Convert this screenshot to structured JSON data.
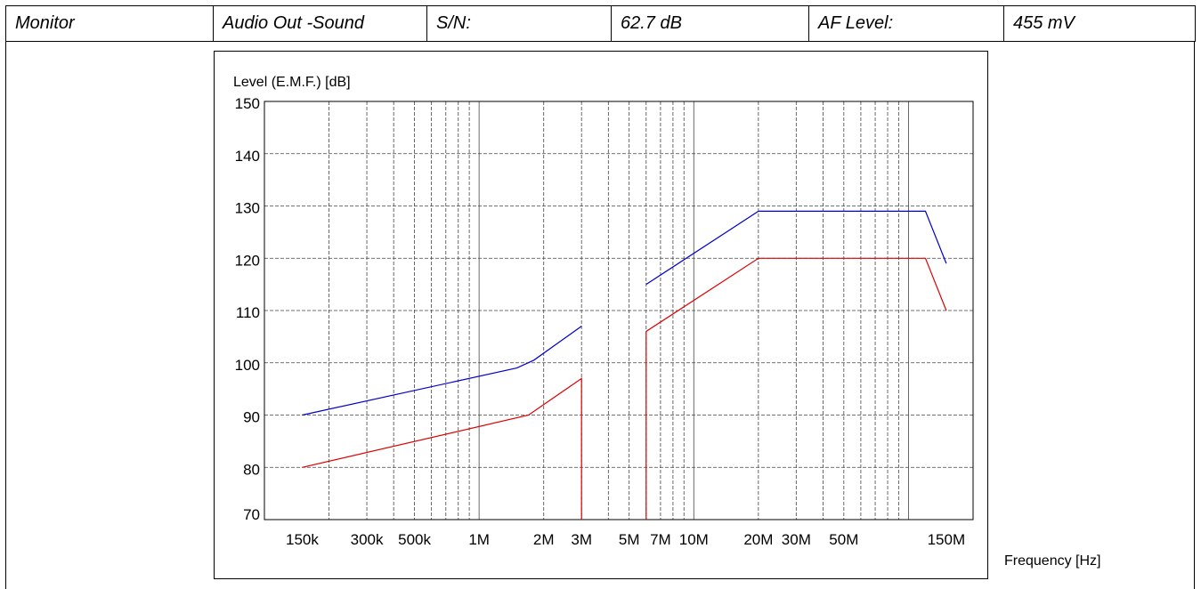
{
  "header": {
    "cells": [
      "Monitor",
      "Audio Out -Sound",
      "S/N:",
      "62.7 dB",
      "AF Level:",
      "455 mV"
    ]
  },
  "chart_data": {
    "type": "line",
    "title": "",
    "ylabel": "Level (E.M.F.) [dB]",
    "xlabel": "Frequency [Hz]",
    "x_scale": "log",
    "xlim": [
      100000,
      200000000
    ],
    "ylim": [
      70,
      150
    ],
    "yticks": [
      70,
      80,
      90,
      100,
      110,
      120,
      130,
      140,
      150
    ],
    "xticks": [
      {
        "value": 150000,
        "label": "150k"
      },
      {
        "value": 300000,
        "label": "300k"
      },
      {
        "value": 500000,
        "label": "500k"
      },
      {
        "value": 1000000,
        "label": "1M"
      },
      {
        "value": 2000000,
        "label": "2M"
      },
      {
        "value": 3000000,
        "label": "3M"
      },
      {
        "value": 5000000,
        "label": "5M"
      },
      {
        "value": 7000000,
        "label": "7M"
      },
      {
        "value": 10000000,
        "label": "10M"
      },
      {
        "value": 20000000,
        "label": "20M"
      },
      {
        "value": 30000000,
        "label": "30M"
      },
      {
        "value": 50000000,
        "label": "50M"
      },
      {
        "value": 150000000,
        "label": "150M"
      }
    ],
    "grid": true,
    "series": [
      {
        "color": "#0000cc",
        "segments": [
          [
            [
              150000,
              90
            ],
            [
              1500000,
              99
            ],
            [
              1800000,
              100.5
            ],
            [
              3000000,
              107
            ]
          ],
          [
            [
              6000000,
              115
            ],
            [
              20000000,
              129
            ],
            [
              120000000,
              129
            ],
            [
              150000000,
              119
            ]
          ]
        ]
      },
      {
        "color": "#dd0000",
        "segments": [
          [
            [
              150000,
              80
            ],
            [
              1700000,
              90
            ],
            [
              3000000,
              97
            ],
            [
              3000000,
              70
            ]
          ],
          [
            [
              6000000,
              70
            ],
            [
              6000000,
              106
            ],
            [
              20000000,
              120
            ],
            [
              120000000,
              120
            ],
            [
              150000000,
              110
            ]
          ]
        ]
      }
    ]
  }
}
